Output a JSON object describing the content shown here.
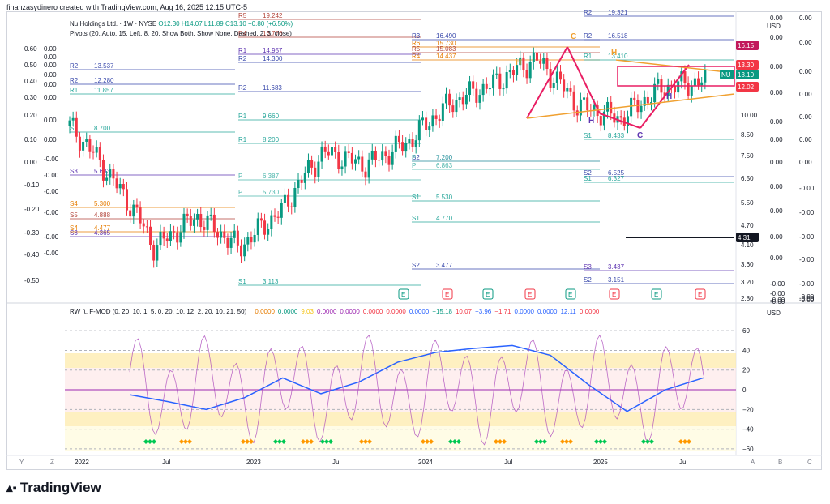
{
  "header": {
    "author_line": "finanzasydinero created with TradingView.com, Aug 16, 2025 12:15 UTC-5",
    "symbol": "Nu Holdings Ltd. · 1W · NYSE",
    "ohlc": "O12.30 H14.07 L11.89 C13.10 +0.80 (+6.50%)",
    "pivots": "Pivots (20, Auto, 15, Left, 8, 20, Show Both, Show None, Dashed, 2, 3, close)"
  },
  "price_axis": {
    "currency": "USD",
    "ticks": [
      {
        "label": "13.30",
        "tag": "13.30",
        "color": "#f23645"
      },
      {
        "label": "10.00"
      },
      {
        "label": "8.50"
      },
      {
        "label": "7.50"
      },
      {
        "label": "6.50"
      },
      {
        "label": "5.50"
      },
      {
        "label": "4.70"
      },
      {
        "label": "4.10"
      },
      {
        "label": "3.60"
      },
      {
        "label": "3.20"
      },
      {
        "label": "2.80"
      }
    ],
    "tags": [
      {
        "label": "16.15",
        "color": "#c2185b"
      },
      {
        "label": "13.30",
        "color": "#f23645"
      },
      {
        "label": "NU",
        "color": "#089981"
      },
      {
        "label": "13.10",
        "color": "#089981"
      },
      {
        "label": "12.02",
        "color": "#f23645"
      },
      {
        "label": "4.31",
        "color": "#131722"
      }
    ]
  },
  "aux_axes": {
    "col1": [
      "0.60",
      "0.50",
      "0.40",
      "0.30",
      "0.20",
      "0.10",
      "0.00",
      "-0.10",
      "-0.20",
      "-0.30",
      "-0.40",
      "-0.50"
    ],
    "col2": [
      "0.00",
      "0.00",
      "0.00",
      "0.00",
      "0.00",
      "0.00",
      "0.00",
      "0.00",
      "-0.00",
      "-0.00",
      "-0.00",
      "-0.00",
      "-0.00",
      "-0.00"
    ],
    "col3": [
      "0.00",
      "0.00",
      "0.00",
      "0.00",
      "0.00",
      "0.00",
      "0.00",
      "0.00",
      "0.00",
      "0.00",
      "0.00",
      "-0.00",
      "-0.00",
      "-0.00",
      "-0.00",
      "-0.00",
      "-0.00"
    ],
    "col4": [
      "0.00",
      "0.00",
      "0.00",
      "0.00",
      "0.00",
      "0.00",
      "0.00",
      "-0.00",
      "-0.00",
      "-0.00",
      "-0.00",
      "-0.00",
      "-0.00",
      "-0.00",
      "-0.00"
    ]
  },
  "pivot_labels": [
    {
      "name": "R5",
      "value": "19.242",
      "color": "#b2443a"
    },
    {
      "name": "R4",
      "value": "16.776",
      "color": "#b2443a"
    },
    {
      "name": "R3",
      "value": "16.490",
      "color": "#3949ab"
    },
    {
      "name": "R6",
      "value": "15.730",
      "color": "#e67c00"
    },
    {
      "name": "R5",
      "value": "15.083",
      "color": "#b2443a"
    },
    {
      "name": "R4",
      "value": "14.437",
      "color": "#e67c00"
    },
    {
      "name": "R1",
      "value": "14.957",
      "color": "#5e35b1"
    },
    {
      "name": "R2",
      "value": "14.300",
      "color": "#3949ab"
    },
    {
      "name": "R2",
      "value": "13.537",
      "color": "#3949ab"
    },
    {
      "name": "R2",
      "value": "12.280",
      "color": "#3949ab"
    },
    {
      "name": "R2",
      "value": "11.683",
      "color": "#3949ab"
    },
    {
      "name": "R1",
      "value": "11.857",
      "color": "#26a69a"
    },
    {
      "name": "R1",
      "value": "9.660",
      "color": "#26a69a"
    },
    {
      "name": "R1",
      "value": "8.200",
      "color": "#26a69a"
    },
    {
      "name": "S1",
      "value": "8.700",
      "color": "#26a69a"
    },
    {
      "name": "S2",
      "value": "7.200",
      "color": "#3949ab"
    },
    {
      "name": "S3",
      "value": "5.683",
      "color": "#5e35b1"
    },
    {
      "name": "P",
      "value": "7.200",
      "color": "#4db6ac"
    },
    {
      "name": "P",
      "value": "6.863",
      "color": "#4db6ac"
    },
    {
      "name": "P",
      "value": "6.387",
      "color": "#4db6ac"
    },
    {
      "name": "P",
      "value": "5.730",
      "color": "#4db6ac"
    },
    {
      "name": "S1",
      "value": "5.530",
      "color": "#26a69a"
    },
    {
      "name": "S1",
      "value": "4.770",
      "color": "#26a69a"
    },
    {
      "name": "S4",
      "value": "5.300",
      "color": "#e67c00"
    },
    {
      "name": "S5",
      "value": "4.888",
      "color": "#b2443a"
    },
    {
      "name": "S4",
      "value": "4.477",
      "color": "#e67c00"
    },
    {
      "name": "S3",
      "value": "4.365",
      "color": "#5e35b1"
    },
    {
      "name": "S2",
      "value": "3.477",
      "color": "#3949ab"
    },
    {
      "name": "S1",
      "value": "3.113",
      "color": "#26a69a"
    },
    {
      "name": "R2",
      "value": "16.518",
      "color": "#3949ab"
    },
    {
      "name": "R1",
      "value": "13.410",
      "color": "#26a69a"
    },
    {
      "name": "S1",
      "value": "8.433",
      "color": "#26a69a"
    },
    {
      "name": "S2",
      "value": "6.525",
      "color": "#3949ab"
    },
    {
      "name": "S1",
      "value": "6.327",
      "color": "#26a69a"
    },
    {
      "name": "S3",
      "value": "3.437",
      "color": "#5e35b1"
    },
    {
      "name": "S2",
      "value": "3.151",
      "color": "#3949ab"
    },
    {
      "name": "R2",
      "value": "19.321",
      "color": "#3949ab"
    }
  ],
  "pattern_labels": {
    "H1": "H",
    "C1": "C",
    "H2": "H",
    "C2": "C",
    "H3": "H",
    "H4": "H"
  },
  "oscillator": {
    "title": "RW ft. F-MOD (0, 20, 10, 1, 5, 0, 20, 10, 12, 2, 20, 10, 21, 50)",
    "values": [
      "0.0000",
      "0.0000",
      "9.03",
      "0.0000",
      "0.0000",
      "0.0000",
      "0.0000",
      "0.0000",
      "−15.18",
      "10.07",
      "−3.96",
      "−1.71",
      "0.0000",
      "0.0000",
      "12.11",
      "0.0000"
    ],
    "value_colors": [
      "#e67c00",
      "#089981",
      "#f5c518",
      "#9c27b0",
      "#9c27b0",
      "#f23645",
      "#f23645",
      "#2962ff",
      "#089981",
      "#f23645",
      "#2962ff",
      "#f23645",
      "#2962ff",
      "#2962ff",
      "#2962ff",
      "#f23645"
    ],
    "currency": "USD",
    "ticks": [
      "60",
      "40",
      "20",
      "0",
      "−20",
      "−40",
      "−60"
    ]
  },
  "time_axis": {
    "labels": [
      "2022",
      "Jul",
      "2023",
      "Jul",
      "2024",
      "Jul",
      "2025",
      "Jul"
    ],
    "left_corner": [
      "Y",
      "Z"
    ],
    "right_corner": [
      "A",
      "B",
      "C"
    ]
  },
  "brand": "TradingView",
  "chart_data": {
    "type": "line",
    "title": "Nu Holdings Ltd. · 1W · NYSE",
    "x": [
      "2022-01",
      "2022-04",
      "2022-07",
      "2022-10",
      "2023-01",
      "2023-04",
      "2023-07",
      "2023-10",
      "2024-01",
      "2024-04",
      "2024-07",
      "2024-10",
      "2025-01",
      "2025-04",
      "2025-07",
      "2025-08"
    ],
    "series": [
      {
        "name": "NU",
        "values": [
          9.5,
          6.5,
          4.0,
          5.0,
          4.0,
          5.2,
          7.9,
          7.2,
          8.5,
          11.2,
          12.8,
          15.3,
          11.0,
          10.0,
          12.5,
          13.1
        ]
      }
    ],
    "ylim": [
      2.8,
      20
    ],
    "oscillator": {
      "ylim": [
        -65,
        70
      ],
      "blue": [
        -5,
        -12,
        -20,
        -8,
        12,
        -4,
        8,
        28,
        38,
        42,
        45,
        35,
        5,
        -22,
        0,
        12.11
      ]
    }
  }
}
